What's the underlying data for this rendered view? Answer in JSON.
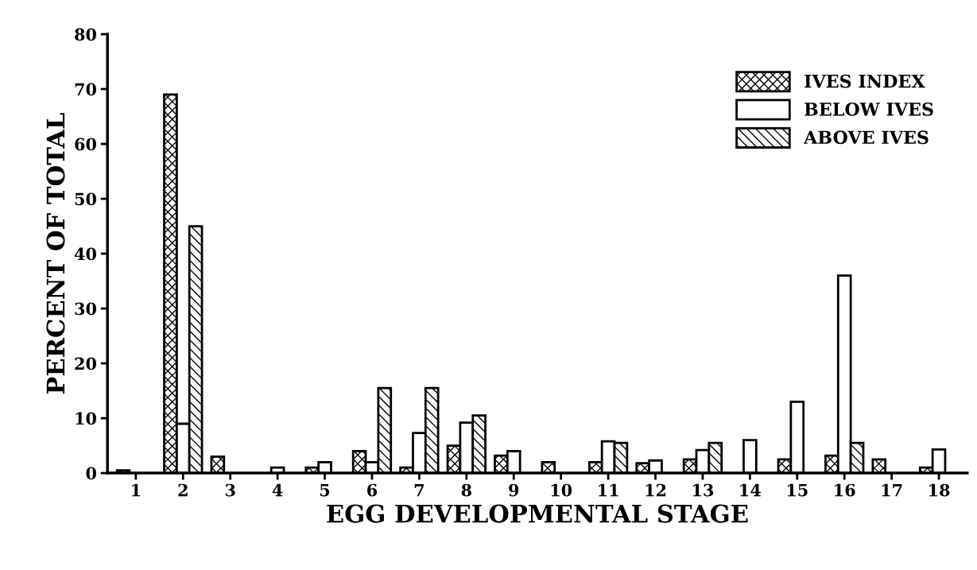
{
  "chart_data": {
    "type": "bar",
    "xlabel": "EGG DEVELOPMENTAL STAGE",
    "ylabel": "PERCENT OF TOTAL",
    "categories": [
      "1",
      "2",
      "3",
      "4",
      "5",
      "6",
      "7",
      "8",
      "9",
      "10",
      "11",
      "12",
      "13",
      "14",
      "15",
      "16",
      "17",
      "18"
    ],
    "series": [
      {
        "name": "IVES INDEX",
        "color": "#000000",
        "values": [
          0.5,
          69,
          3,
          null,
          1,
          4,
          1,
          5,
          3.2,
          2,
          2,
          1.8,
          2.5,
          null,
          2.5,
          3.2,
          2.5,
          1
        ]
      },
      {
        "name": "BELOW IVES",
        "color": "#ffffff",
        "values": [
          null,
          9,
          null,
          1,
          2,
          2,
          7.3,
          9.2,
          4,
          null,
          5.8,
          2.3,
          4.2,
          6,
          13,
          36,
          null,
          4.3
        ]
      },
      {
        "name": "ABOVE IVES",
        "color": "#000000",
        "values": [
          null,
          45,
          null,
          null,
          null,
          15.5,
          15.5,
          10.5,
          null,
          null,
          5.5,
          null,
          5.5,
          null,
          null,
          5.5,
          null,
          null
        ]
      }
    ],
    "ylim": [
      0,
      80
    ],
    "yticks": [
      0,
      10,
      20,
      30,
      40,
      50,
      60,
      70,
      80
    ],
    "grid": false,
    "legend": "top right"
  }
}
